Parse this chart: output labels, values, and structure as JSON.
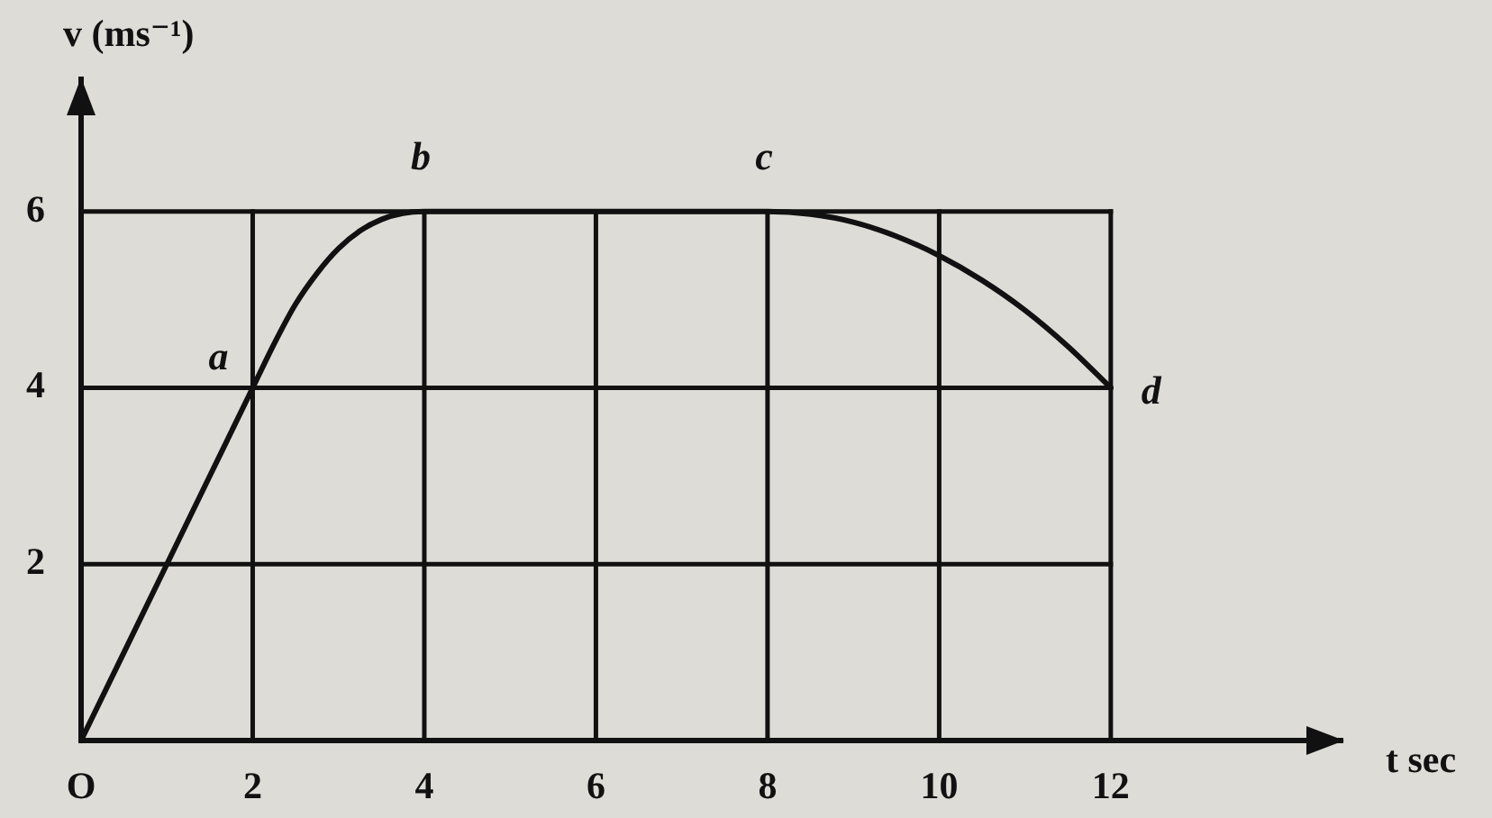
{
  "chart_data": {
    "type": "line",
    "xlabel": "t sec",
    "ylabel": "v (ms⁻¹)",
    "x": [
      0,
      1,
      2,
      2.25,
      2.5,
      2.75,
      3,
      3.25,
      3.5,
      3.75,
      4,
      8,
      8.5,
      9,
      9.5,
      10,
      10.5,
      11,
      11.5,
      12
    ],
    "series": [
      {
        "color": "#111111",
        "values": [
          0,
          2,
          4,
          4.5,
          4.95,
          5.3,
          5.58,
          5.78,
          5.91,
          5.98,
          6,
          6,
          5.97,
          5.88,
          5.72,
          5.5,
          5.22,
          4.88,
          4.47,
          4
        ]
      }
    ],
    "xlim": [
      0,
      14.7
    ],
    "ylim": [
      0,
      7.5
    ],
    "xticks": [
      {
        "value": 0,
        "label": "O"
      },
      2,
      4,
      6,
      8,
      10,
      12
    ],
    "yticks": [
      2,
      4,
      6
    ],
    "grid": true,
    "annotations": [
      {
        "text": "a",
        "x": 2,
        "y": 4
      },
      {
        "text": "b",
        "x": 4,
        "y": 6
      },
      {
        "text": "c",
        "x": 8,
        "y": 6
      },
      {
        "text": "d",
        "x": 12,
        "y": 4
      }
    ]
  }
}
